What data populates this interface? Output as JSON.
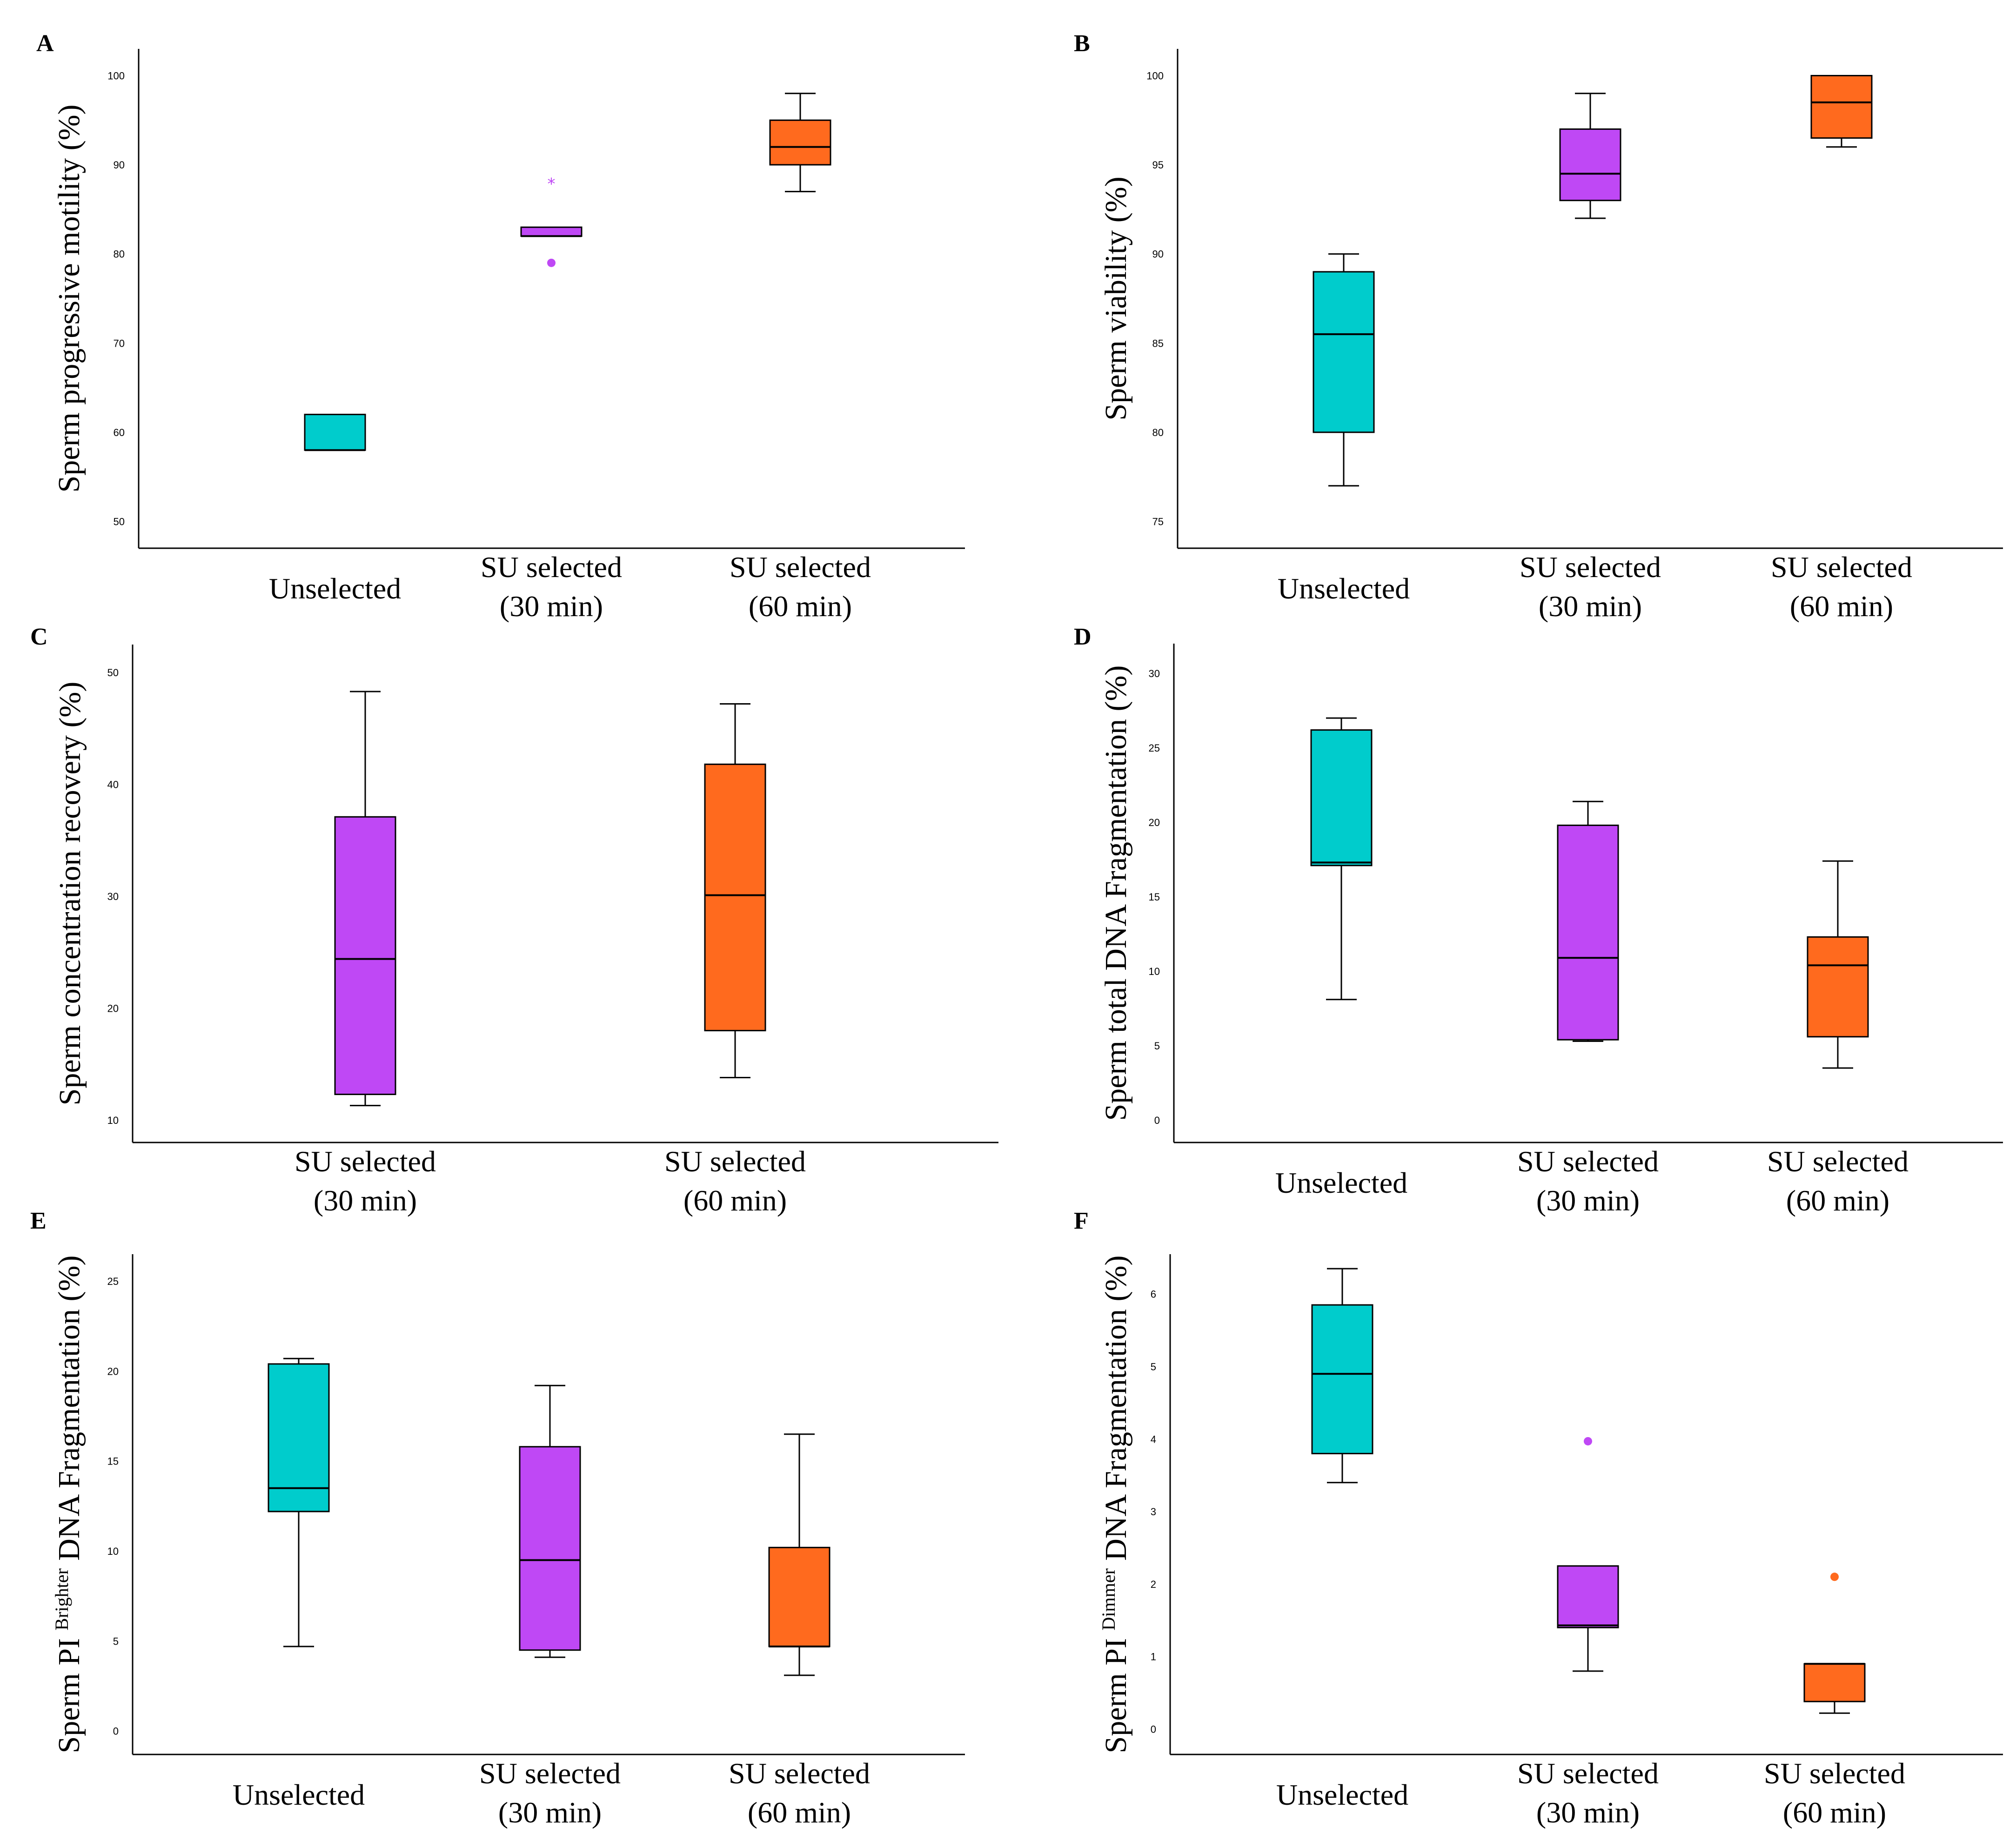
{
  "colors": {
    "Unselected": "#00CCCC",
    "SU selected (30 min)": "#BF48F5",
    "SU selected (60 min)": "#FF6A1E"
  },
  "chart_data": [
    {
      "panel": "A",
      "type": "box",
      "ylabel": "Sperm progressive motility (%)",
      "ylabel_sup": "",
      "ylabel_rest": "",
      "ylim": [
        47,
        103
      ],
      "yticks": [
        50,
        60,
        70,
        80,
        90,
        100
      ],
      "categories": [
        {
          "key": "Unselected",
          "label_lines": [
            "Unselected"
          ]
        },
        {
          "key": "SU selected (30 min)",
          "label_lines": [
            "SU selected",
            "(30 min)"
          ]
        },
        {
          "key": "SU selected (60 min)",
          "label_lines": [
            "SU selected",
            "(60 min)"
          ]
        }
      ],
      "boxes": [
        {
          "category": "Unselected",
          "min": 58,
          "q1": 58,
          "median": 58,
          "q3": 62,
          "max": 62,
          "outliers": []
        },
        {
          "category": "SU selected (30 min)",
          "min": 82,
          "q1": 82,
          "median": 82,
          "q3": 83,
          "max": 83,
          "outliers": [
            {
              "value": 79,
              "marker": "circle"
            },
            {
              "value": 88,
              "marker": "star"
            }
          ]
        },
        {
          "category": "SU selected (60 min)",
          "min": 87,
          "q1": 90,
          "median": 92,
          "q3": 95,
          "max": 98,
          "outliers": []
        }
      ]
    },
    {
      "panel": "B",
      "type": "box",
      "ylabel": "Sperm viability (%)",
      "ylabel_sup": "",
      "ylabel_rest": "",
      "ylim": [
        73.5,
        101.5
      ],
      "yticks": [
        75,
        80,
        85,
        90,
        95,
        100
      ],
      "categories": [
        {
          "key": "Unselected",
          "label_lines": [
            "Unselected"
          ]
        },
        {
          "key": "SU selected (30 min)",
          "label_lines": [
            "SU selected",
            "(30 min)"
          ]
        },
        {
          "key": "SU selected (60 min)",
          "label_lines": [
            "SU selected",
            "(60 min)"
          ]
        }
      ],
      "boxes": [
        {
          "category": "Unselected",
          "min": 77,
          "q1": 80,
          "median": 85.5,
          "q3": 89,
          "max": 90,
          "outliers": []
        },
        {
          "category": "SU selected (30 min)",
          "min": 92,
          "q1": 93,
          "median": 94.5,
          "q3": 97,
          "max": 99,
          "outliers": []
        },
        {
          "category": "SU selected (60 min)",
          "min": 96,
          "q1": 96.5,
          "median": 98.5,
          "q3": 100,
          "max": 100,
          "outliers": []
        }
      ]
    },
    {
      "panel": "C",
      "type": "box",
      "ylabel": "Sperm concentration  recovery (%)",
      "ylabel_sup": "",
      "ylabel_rest": "",
      "ylim": [
        8,
        52.5
      ],
      "yticks": [
        10,
        20,
        30,
        40,
        50
      ],
      "categories": [
        {
          "key": "SU selected (30 min)",
          "label_lines": [
            "SU selected",
            "(30 min)"
          ]
        },
        {
          "key": "SU selected (60 min)",
          "label_lines": [
            "SU selected",
            "(60 min)"
          ]
        }
      ],
      "boxes": [
        {
          "category": "SU selected (30 min)",
          "min": 11.3,
          "q1": 12.3,
          "median": 24.4,
          "q3": 37.1,
          "max": 48.3,
          "outliers": []
        },
        {
          "category": "SU selected (60 min)",
          "min": 13.8,
          "q1": 18.0,
          "median": 30.1,
          "q3": 41.8,
          "max": 47.2,
          "outliers": []
        }
      ]
    },
    {
      "panel": "D",
      "type": "box",
      "ylabel": "Sperm total DNA Fragmentation (%)",
      "ylabel_sup": "",
      "ylabel_rest": "",
      "ylim": [
        -1.5,
        32
      ],
      "yticks": [
        0,
        5,
        10,
        15,
        20,
        25,
        30
      ],
      "categories": [
        {
          "key": "Unselected",
          "label_lines": [
            "Unselected"
          ]
        },
        {
          "key": "SU selected (30 min)",
          "label_lines": [
            "SU selected",
            "(30 min)"
          ]
        },
        {
          "key": "SU selected (60 min)",
          "label_lines": [
            "SU selected",
            "(60 min)"
          ]
        }
      ],
      "boxes": [
        {
          "category": "Unselected",
          "min": 8.1,
          "q1": 17.1,
          "median": 17.3,
          "q3": 26.2,
          "max": 27.0,
          "outliers": []
        },
        {
          "category": "SU selected (30 min)",
          "min": 5.3,
          "q1": 5.4,
          "median": 10.9,
          "q3": 19.8,
          "max": 21.4,
          "outliers": []
        },
        {
          "category": "SU selected (60 min)",
          "min": 3.5,
          "q1": 5.6,
          "median": 10.4,
          "q3": 12.3,
          "max": 17.4,
          "outliers": []
        }
      ]
    },
    {
      "panel": "E",
      "type": "box",
      "ylabel": "Sperm PI ",
      "ylabel_sup": "Brighter",
      "ylabel_rest": " DNA Fragmentation (%)",
      "ylim": [
        -1.3,
        26.5
      ],
      "yticks": [
        0,
        5,
        10,
        15,
        20,
        25
      ],
      "categories": [
        {
          "key": "Unselected",
          "label_lines": [
            "Unselected"
          ]
        },
        {
          "key": "SU selected (30 min)",
          "label_lines": [
            "SU selected",
            "(30 min)"
          ]
        },
        {
          "key": "SU selected (60 min)",
          "label_lines": [
            "SU selected",
            "(60 min)"
          ]
        }
      ],
      "boxes": [
        {
          "category": "Unselected",
          "min": 4.7,
          "q1": 12.2,
          "median": 13.5,
          "q3": 20.4,
          "max": 20.7,
          "outliers": []
        },
        {
          "category": "SU selected (30 min)",
          "min": 4.1,
          "q1": 4.5,
          "median": 9.5,
          "q3": 15.8,
          "max": 19.2,
          "outliers": []
        },
        {
          "category": "SU selected (60 min)",
          "min": 3.1,
          "q1": 4.7,
          "median": 4.7,
          "q3": 10.2,
          "max": 16.5,
          "outliers": []
        }
      ]
    },
    {
      "panel": "F",
      "type": "box",
      "ylabel": "Sperm PI ",
      "ylabel_sup": "Dimmer",
      "ylabel_rest": " DNA Fragmentation (%)",
      "ylim": [
        -0.35,
        6.55
      ],
      "yticks": [
        0,
        1,
        2,
        3,
        4,
        5,
        6
      ],
      "categories": [
        {
          "key": "Unselected",
          "label_lines": [
            "Unselected"
          ]
        },
        {
          "key": "SU selected (30 min)",
          "label_lines": [
            "SU selected",
            "(30 min)"
          ]
        },
        {
          "key": "SU selected (60 min)",
          "label_lines": [
            "SU selected",
            "(60 min)"
          ]
        }
      ],
      "boxes": [
        {
          "category": "Unselected",
          "min": 3.4,
          "q1": 3.8,
          "median": 4.9,
          "q3": 5.85,
          "max": 6.35,
          "outliers": []
        },
        {
          "category": "SU selected (30 min)",
          "min": 0.8,
          "q1": 1.4,
          "median": 1.43,
          "q3": 2.25,
          "max": 2.25,
          "outliers": [
            {
              "value": 3.97,
              "marker": "circle"
            }
          ]
        },
        {
          "category": "SU selected (60 min)",
          "min": 0.22,
          "q1": 0.38,
          "median": 0.9,
          "q3": 0.9,
          "max": 0.9,
          "outliers": [
            {
              "value": 2.1,
              "marker": "circle"
            }
          ]
        }
      ]
    }
  ]
}
